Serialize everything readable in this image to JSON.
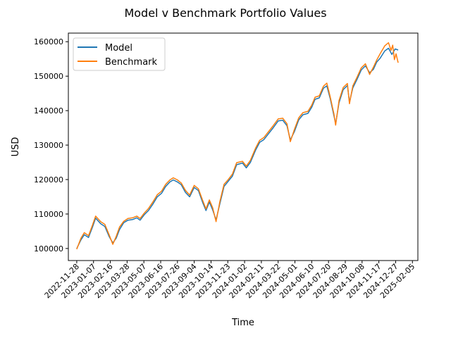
{
  "chart_data": {
    "type": "line",
    "title": "Model v Benchmark Portfolio Values",
    "xlabel": "Time",
    "ylabel": "USD",
    "x_range": [
      "2022-11-08",
      "2025-02-18"
    ],
    "ylim": [
      96500,
      162500
    ],
    "x_ticks": [
      "2022-11-28",
      "2023-01-07",
      "2023-02-16",
      "2023-03-28",
      "2023-05-07",
      "2023-06-16",
      "2023-07-26",
      "2023-09-04",
      "2023-10-14",
      "2023-11-23",
      "2024-01-02",
      "2024-02-11",
      "2024-03-22",
      "2024-05-01",
      "2024-06-10",
      "2024-07-20",
      "2024-08-29",
      "2024-10-08",
      "2024-11-17",
      "2024-12-27",
      "2025-02-05"
    ],
    "y_ticks": [
      100000,
      110000,
      120000,
      130000,
      140000,
      150000,
      160000
    ],
    "y_tick_labels": [
      "100000",
      "110000",
      "120000",
      "130000",
      "140000",
      "150000",
      "160000"
    ],
    "legend_position": "upper-left",
    "grid": false,
    "series": [
      {
        "name": "Model",
        "color": "#1f77b4",
        "points": [
          [
            "2022-11-28",
            100000
          ],
          [
            "2022-12-08",
            102500
          ],
          [
            "2022-12-16",
            104000
          ],
          [
            "2022-12-26",
            103200
          ],
          [
            "2023-01-04",
            106000
          ],
          [
            "2023-01-12",
            108800
          ],
          [
            "2023-01-24",
            107200
          ],
          [
            "2023-02-03",
            106400
          ],
          [
            "2023-02-13",
            103500
          ],
          [
            "2023-02-22",
            101600
          ],
          [
            "2023-03-02",
            103000
          ],
          [
            "2023-03-10",
            105500
          ],
          [
            "2023-03-20",
            107500
          ],
          [
            "2023-03-30",
            108200
          ],
          [
            "2023-04-10",
            108400
          ],
          [
            "2023-04-20",
            108900
          ],
          [
            "2023-04-28",
            108200
          ],
          [
            "2023-05-08",
            109800
          ],
          [
            "2023-05-18",
            111000
          ],
          [
            "2023-05-29",
            113000
          ],
          [
            "2023-06-08",
            115000
          ],
          [
            "2023-06-18",
            116000
          ],
          [
            "2023-06-28",
            118000
          ],
          [
            "2023-07-08",
            119300
          ],
          [
            "2023-07-16",
            119900
          ],
          [
            "2023-07-26",
            119300
          ],
          [
            "2023-08-04",
            118500
          ],
          [
            "2023-08-14",
            116300
          ],
          [
            "2023-08-24",
            115000
          ],
          [
            "2023-09-04",
            117700
          ],
          [
            "2023-09-14",
            116800
          ],
          [
            "2023-09-24",
            113400
          ],
          [
            "2023-10-02",
            111000
          ],
          [
            "2023-10-10",
            113500
          ],
          [
            "2023-10-18",
            111200
          ],
          [
            "2023-10-26",
            108300
          ],
          [
            "2023-11-04",
            113000
          ],
          [
            "2023-11-14",
            118000
          ],
          [
            "2023-11-24",
            119500
          ],
          [
            "2023-12-04",
            121000
          ],
          [
            "2023-12-14",
            124300
          ],
          [
            "2023-12-28",
            124800
          ],
          [
            "2024-01-06",
            123400
          ],
          [
            "2024-01-16",
            125000
          ],
          [
            "2024-01-28",
            128500
          ],
          [
            "2024-02-07",
            130800
          ],
          [
            "2024-02-17",
            131600
          ],
          [
            "2024-02-28",
            133300
          ],
          [
            "2024-03-10",
            135000
          ],
          [
            "2024-03-22",
            137000
          ],
          [
            "2024-04-02",
            137200
          ],
          [
            "2024-04-12",
            135600
          ],
          [
            "2024-04-20",
            131500
          ],
          [
            "2024-04-30",
            134000
          ],
          [
            "2024-05-10",
            137300
          ],
          [
            "2024-05-20",
            138800
          ],
          [
            "2024-06-01",
            139200
          ],
          [
            "2024-06-10",
            141000
          ],
          [
            "2024-06-18",
            143300
          ],
          [
            "2024-06-28",
            143700
          ],
          [
            "2024-07-08",
            146500
          ],
          [
            "2024-07-16",
            147200
          ],
          [
            "2024-07-24",
            143500
          ],
          [
            "2024-08-02",
            138500
          ],
          [
            "2024-08-06",
            136200
          ],
          [
            "2024-08-14",
            142300
          ],
          [
            "2024-08-24",
            146100
          ],
          [
            "2024-09-03",
            147300
          ],
          [
            "2024-09-08",
            142500
          ],
          [
            "2024-09-16",
            146600
          ],
          [
            "2024-09-26",
            149100
          ],
          [
            "2024-10-06",
            151800
          ],
          [
            "2024-10-16",
            153000
          ],
          [
            "2024-10-26",
            151000
          ],
          [
            "2024-11-04",
            152000
          ],
          [
            "2024-11-12",
            154100
          ],
          [
            "2024-11-20",
            155200
          ],
          [
            "2024-12-01",
            157300
          ],
          [
            "2024-12-10",
            158100
          ],
          [
            "2024-12-18",
            156300
          ],
          [
            "2024-12-26",
            157900
          ],
          [
            "2025-01-02",
            157600
          ]
        ]
      },
      {
        "name": "Benchmark",
        "color": "#ff7f0e",
        "points": [
          [
            "2022-11-28",
            99800
          ],
          [
            "2022-12-08",
            103000
          ],
          [
            "2022-12-16",
            104600
          ],
          [
            "2022-12-26",
            103700
          ],
          [
            "2023-01-04",
            106600
          ],
          [
            "2023-01-12",
            109400
          ],
          [
            "2023-01-24",
            107800
          ],
          [
            "2023-02-03",
            107000
          ],
          [
            "2023-02-13",
            104000
          ],
          [
            "2023-02-22",
            101200
          ],
          [
            "2023-03-02",
            103500
          ],
          [
            "2023-03-10",
            106200
          ],
          [
            "2023-03-20",
            107900
          ],
          [
            "2023-03-30",
            108700
          ],
          [
            "2023-04-10",
            108900
          ],
          [
            "2023-04-20",
            109400
          ],
          [
            "2023-04-28",
            108700
          ],
          [
            "2023-05-08",
            110300
          ],
          [
            "2023-05-18",
            111600
          ],
          [
            "2023-05-29",
            113600
          ],
          [
            "2023-06-08",
            115600
          ],
          [
            "2023-06-18",
            116600
          ],
          [
            "2023-06-28",
            118600
          ],
          [
            "2023-07-08",
            119900
          ],
          [
            "2023-07-16",
            120500
          ],
          [
            "2023-07-26",
            119900
          ],
          [
            "2023-08-04",
            119000
          ],
          [
            "2023-08-14",
            116900
          ],
          [
            "2023-08-24",
            115500
          ],
          [
            "2023-09-04",
            118300
          ],
          [
            "2023-09-14",
            117300
          ],
          [
            "2023-09-24",
            114000
          ],
          [
            "2023-10-02",
            111500
          ],
          [
            "2023-10-10",
            114100
          ],
          [
            "2023-10-18",
            111800
          ],
          [
            "2023-10-26",
            107800
          ],
          [
            "2023-11-04",
            113600
          ],
          [
            "2023-11-14",
            118600
          ],
          [
            "2023-11-24",
            120000
          ],
          [
            "2023-12-04",
            121600
          ],
          [
            "2023-12-14",
            124900
          ],
          [
            "2023-12-28",
            125300
          ],
          [
            "2024-01-06",
            123900
          ],
          [
            "2024-01-16",
            125600
          ],
          [
            "2024-01-28",
            129100
          ],
          [
            "2024-02-07",
            131400
          ],
          [
            "2024-02-17",
            132200
          ],
          [
            "2024-02-28",
            133900
          ],
          [
            "2024-03-10",
            135600
          ],
          [
            "2024-03-22",
            137600
          ],
          [
            "2024-04-02",
            137800
          ],
          [
            "2024-04-12",
            136200
          ],
          [
            "2024-04-20",
            131000
          ],
          [
            "2024-04-30",
            134600
          ],
          [
            "2024-05-10",
            137900
          ],
          [
            "2024-05-20",
            139400
          ],
          [
            "2024-06-01",
            139800
          ],
          [
            "2024-06-10",
            141600
          ],
          [
            "2024-06-18",
            143900
          ],
          [
            "2024-06-28",
            144300
          ],
          [
            "2024-07-08",
            147100
          ],
          [
            "2024-07-16",
            148000
          ],
          [
            "2024-07-24",
            144000
          ],
          [
            "2024-08-02",
            139000
          ],
          [
            "2024-08-06",
            135800
          ],
          [
            "2024-08-14",
            142900
          ],
          [
            "2024-08-24",
            146700
          ],
          [
            "2024-09-03",
            147900
          ],
          [
            "2024-09-08",
            142000
          ],
          [
            "2024-09-16",
            147200
          ],
          [
            "2024-09-26",
            149700
          ],
          [
            "2024-10-06",
            152400
          ],
          [
            "2024-10-16",
            153600
          ],
          [
            "2024-10-26",
            150500
          ],
          [
            "2024-11-04",
            152600
          ],
          [
            "2024-11-12",
            154700
          ],
          [
            "2024-11-20",
            156500
          ],
          [
            "2024-12-01",
            158800
          ],
          [
            "2024-12-10",
            159700
          ],
          [
            "2024-12-16",
            157500
          ],
          [
            "2024-12-20",
            159000
          ],
          [
            "2024-12-24",
            154800
          ],
          [
            "2024-12-28",
            156500
          ],
          [
            "2025-01-02",
            153900
          ]
        ]
      }
    ]
  }
}
